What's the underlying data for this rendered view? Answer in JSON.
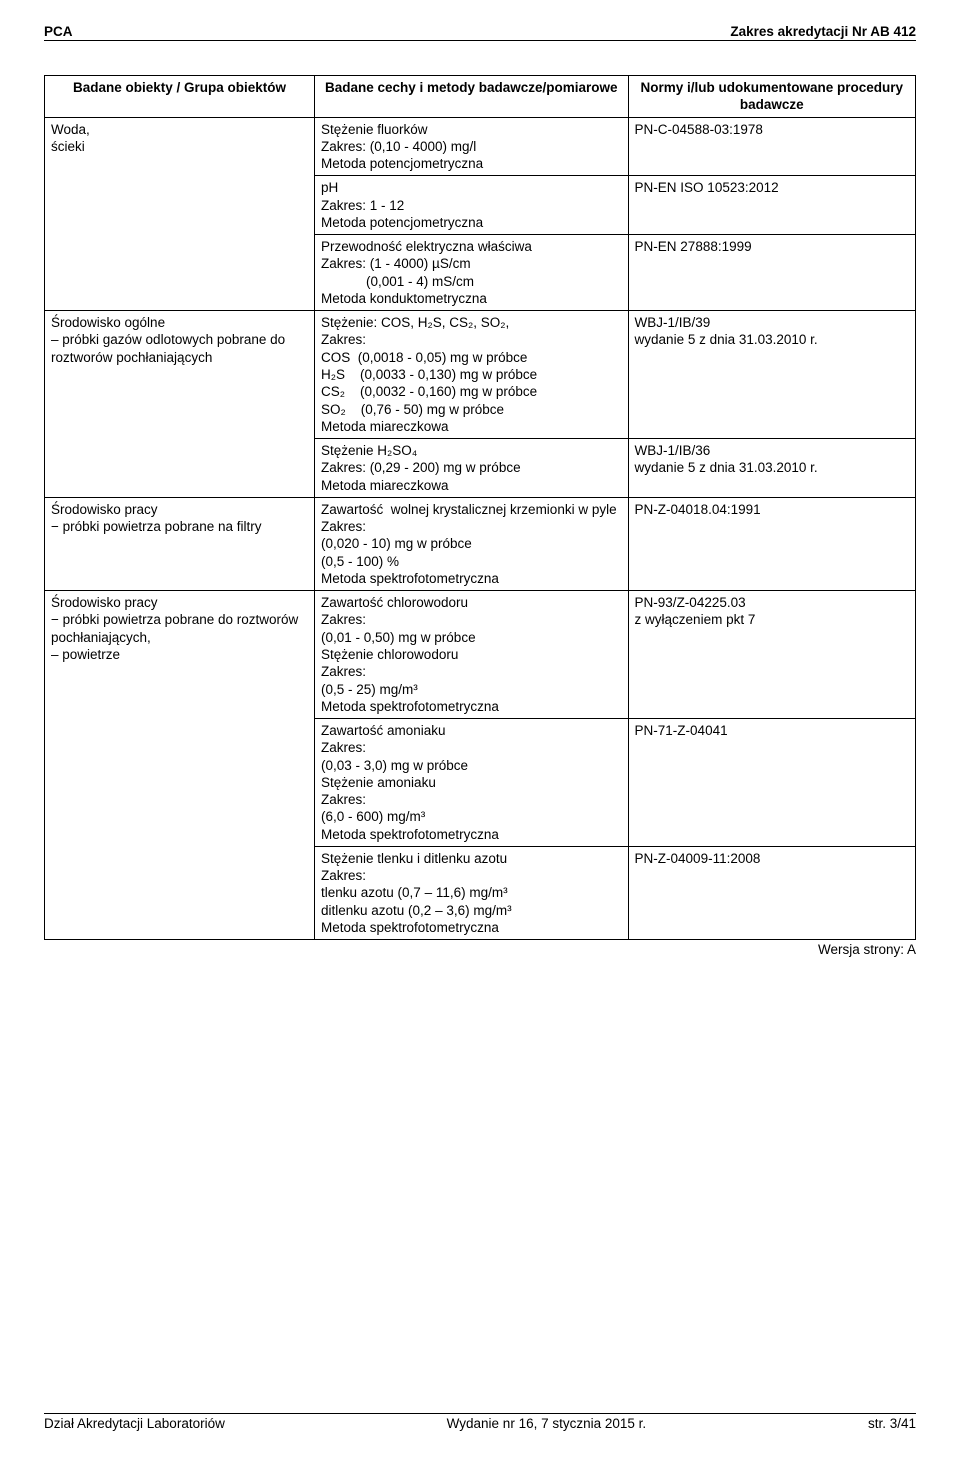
{
  "header": {
    "left": "PCA",
    "right": "Zakres akredytacji Nr AB 412"
  },
  "table": {
    "headers": {
      "c1": "Badane obiekty / Grupa obiektów",
      "c2": "Badane cechy i metody badawcze/pomiarowe",
      "c3": "Normy i/lub udokumentowane procedury badawcze"
    },
    "rows": [
      {
        "left": "Woda,\nścieki",
        "leftRowspan": 3,
        "mid": "Stężenie fluorków\nZakres: (0,10 - 4000) mg/l\nMetoda potencjometryczna",
        "right": "PN-C-04588-03:1978"
      },
      {
        "mid": "pH\nZakres: 1 - 12\nMetoda potencjometryczna",
        "right": "PN-EN ISO 10523:2012"
      },
      {
        "mid": "Przewodność elektryczna właściwa\nZakres: (1 - 4000) µS/cm\n            (0,001 - 4) mS/cm\nMetoda konduktometryczna",
        "right": "PN-EN 27888:1999"
      },
      {
        "left": "Środowisko ogólne\n– próbki gazów odlotowych pobrane do roztworów pochłaniających",
        "leftRowspan": 2,
        "mid": "Stężenie: COS, H₂S, CS₂, SO₂,\nZakres:\nCOS  (0,0018 - 0,05) mg w próbce\nH₂S    (0,0033 - 0,130) mg w próbce\nCS₂    (0,0032 - 0,160) mg w próbce\nSO₂    (0,76 - 50) mg w próbce\nMetoda miareczkowa",
        "right": "WBJ-1/IB/39\nwydanie 5 z dnia 31.03.2010 r."
      },
      {
        "mid": "Stężenie H₂SO₄\nZakres: (0,29 - 200) mg w próbce\nMetoda miareczkowa",
        "right": "WBJ-1/IB/36\nwydanie 5 z dnia 31.03.2010 r."
      },
      {
        "left": "Środowisko pracy\n− próbki powietrza pobrane na filtry",
        "leftRowspan": 1,
        "mid": "Zawartość  wolnej krystalicznej krzemionki w pyle\nZakres:\n(0,020 - 10) mg w próbce\n(0,5 - 100) %\nMetoda spektrofotometryczna",
        "right": "PN-Z-04018.04:1991"
      },
      {
        "left": "Środowisko pracy\n− próbki powietrza pobrane do roztworów  pochłaniających,\n– powietrze",
        "leftRowspan": 3,
        "mid": "Zawartość chlorowodoru\nZakres:\n(0,01 - 0,50) mg w próbce\nStężenie chlorowodoru\nZakres:\n(0,5 - 25) mg/m³\nMetoda spektrofotometryczna",
        "right": "PN-93/Z-04225.03\nz wyłączeniem pkt 7"
      },
      {
        "mid": "Zawartość amoniaku\nZakres:\n(0,03 - 3,0) mg w próbce\nStężenie amoniaku\nZakres:\n(6,0 - 600) mg/m³\nMetoda spektrofotometryczna",
        "right": "PN-71-Z-04041"
      },
      {
        "mid": "Stężenie tlenku i ditlenku azotu\nZakres:\ntlenku azotu (0,7 – 11,6) mg/m³\nditlenku azotu (0,2 – 3,6) mg/m³\nMetoda spektrofotometryczna",
        "right": "PN-Z-04009-11:2008"
      }
    ]
  },
  "versionLine": "Wersja strony: A",
  "footer": {
    "left": "Dział Akredytacji Laboratoriów",
    "mid": "Wydanie nr 16, 7 stycznia 2015 r.",
    "right": "str. 3/41"
  }
}
